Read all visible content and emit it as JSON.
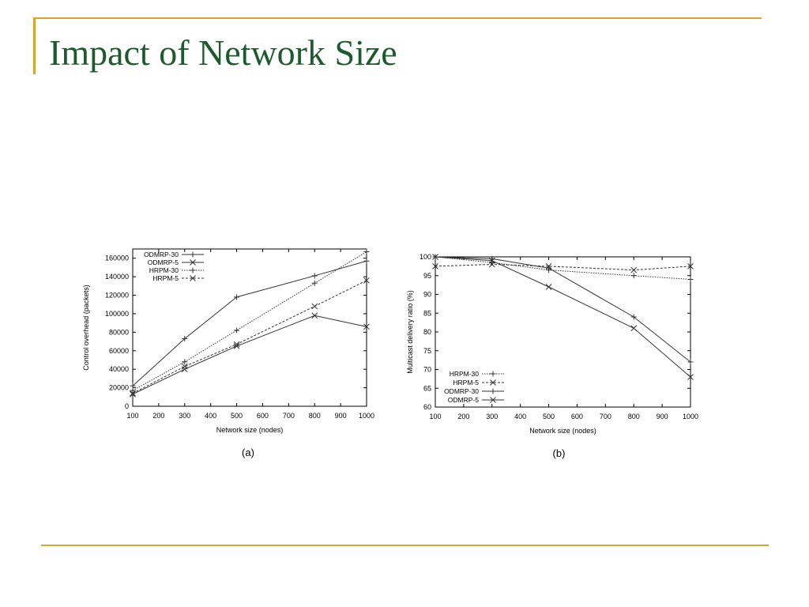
{
  "slide": {
    "title": "Impact of Network Size",
    "colors": {
      "title": "#1e5b2c",
      "rule": "#dca42e",
      "axis": "#000000",
      "series": "#333333"
    }
  },
  "chart_data": [
    {
      "type": "line",
      "panel": "(a)",
      "xlabel": "Network size (nodes)",
      "ylabel": "Control overhead (packets)",
      "xlim": [
        100,
        1000
      ],
      "ylim": [
        0,
        170000
      ],
      "xticks": [
        100,
        200,
        300,
        400,
        500,
        600,
        700,
        800,
        900,
        1000
      ],
      "yticks": [
        0,
        20000,
        40000,
        60000,
        80000,
        100000,
        120000,
        140000,
        160000
      ],
      "legend_position": "top-left",
      "series": [
        {
          "name": "ODMRP-30",
          "marker": "plus",
          "dash": "solid",
          "x": [
            100,
            300,
            500,
            800,
            1000
          ],
          "y": [
            22000,
            73000,
            118000,
            141000,
            157000
          ]
        },
        {
          "name": "ODMRP-5",
          "marker": "cross",
          "dash": "solid",
          "x": [
            100,
            300,
            500,
            800,
            1000
          ],
          "y": [
            13000,
            40000,
            65000,
            98000,
            86000
          ]
        },
        {
          "name": "HRPM-30",
          "marker": "plus",
          "dash": "dotted",
          "x": [
            100,
            300,
            500,
            800,
            1000
          ],
          "y": [
            17000,
            48000,
            82000,
            133000,
            167000
          ]
        },
        {
          "name": "HRPM-5",
          "marker": "cross",
          "dash": "dashed",
          "x": [
            100,
            300,
            500,
            800,
            1000
          ],
          "y": [
            14000,
            43000,
            67000,
            108000,
            136000
          ]
        }
      ]
    },
    {
      "type": "line",
      "panel": "(b)",
      "xlabel": "Network size (nodes)",
      "ylabel": "Multicast delivery ratio (%)",
      "xlim": [
        100,
        1000
      ],
      "ylim": [
        60,
        100
      ],
      "xticks": [
        100,
        200,
        300,
        400,
        500,
        600,
        700,
        800,
        900,
        1000
      ],
      "yticks": [
        60,
        65,
        70,
        75,
        80,
        85,
        90,
        95,
        100
      ],
      "legend_position": "bottom-left",
      "series": [
        {
          "name": "HRPM-30",
          "marker": "plus",
          "dash": "dotted",
          "x": [
            100,
            300,
            500,
            800,
            1000
          ],
          "y": [
            100,
            98.5,
            96.5,
            95,
            94
          ]
        },
        {
          "name": "HRPM-5",
          "marker": "cross",
          "dash": "dashed",
          "x": [
            100,
            300,
            500,
            800,
            1000
          ],
          "y": [
            97.5,
            98,
            97.5,
            96.5,
            97.5
          ]
        },
        {
          "name": "ODMRP-30",
          "marker": "plus",
          "dash": "solid",
          "x": [
            100,
            300,
            500,
            800,
            1000
          ],
          "y": [
            100,
            99.5,
            97,
            84,
            72
          ]
        },
        {
          "name": "ODMRP-5",
          "marker": "cross",
          "dash": "solid",
          "x": [
            100,
            300,
            500,
            800,
            1000
          ],
          "y": [
            100,
            99,
            92,
            81,
            68
          ]
        }
      ]
    }
  ]
}
